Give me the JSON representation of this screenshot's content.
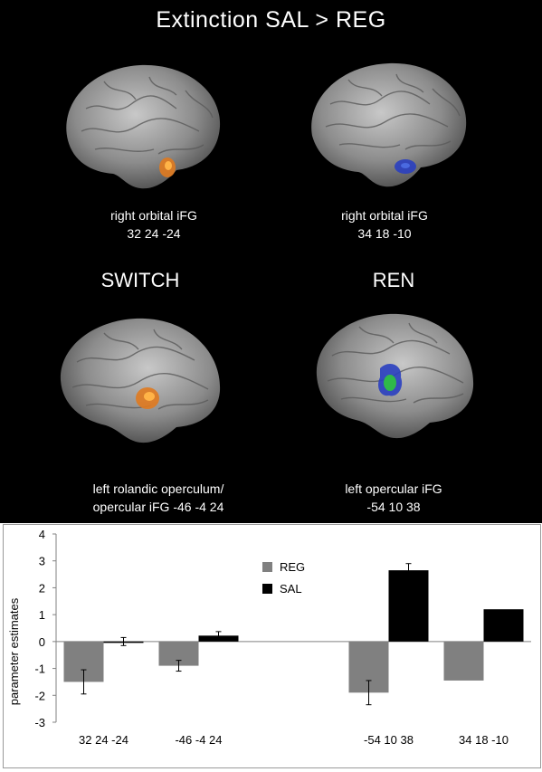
{
  "figure": {
    "title": "Extinction  SAL > REG",
    "sections": [
      "SWITCH",
      "REN"
    ],
    "panels": [
      {
        "region_line1": "right  orbital iFG",
        "region_line2": "32 24 -24",
        "blob": "orange"
      },
      {
        "region_line1": "right orbital iFG",
        "region_line2": "34 18 -10",
        "blob": "blue"
      },
      {
        "region_line1": "left rolandic operculum/",
        "region_line2": "opercular iFG  -46 -4  24",
        "blob": "orange"
      },
      {
        "region_line1": "left opercular iFG",
        "region_line2": "-54 10 38",
        "blob": "blue-green"
      }
    ]
  },
  "chart_data": {
    "type": "bar",
    "categories": [
      "32 24 -24",
      "-46 -4 24",
      "",
      "-54 10 38",
      "34 18 -10"
    ],
    "series": [
      {
        "name": "REG",
        "values": [
          -1.5,
          -0.9,
          null,
          -1.9,
          -1.45
        ],
        "errors": [
          0.45,
          0.2,
          null,
          0.45,
          null
        ],
        "color": "#808080"
      },
      {
        "name": "SAL",
        "values": [
          0.0,
          0.22,
          null,
          2.65,
          1.2
        ],
        "errors": [
          0.15,
          0.15,
          null,
          0.25,
          null
        ],
        "color": "#000000"
      }
    ],
    "ylabel": "parameter estimates",
    "ylim": [
      -3,
      4
    ],
    "yticks": [
      "-3",
      "-2",
      "-1",
      "0",
      "1",
      "2",
      "3",
      "4"
    ],
    "legend_position": "center"
  }
}
